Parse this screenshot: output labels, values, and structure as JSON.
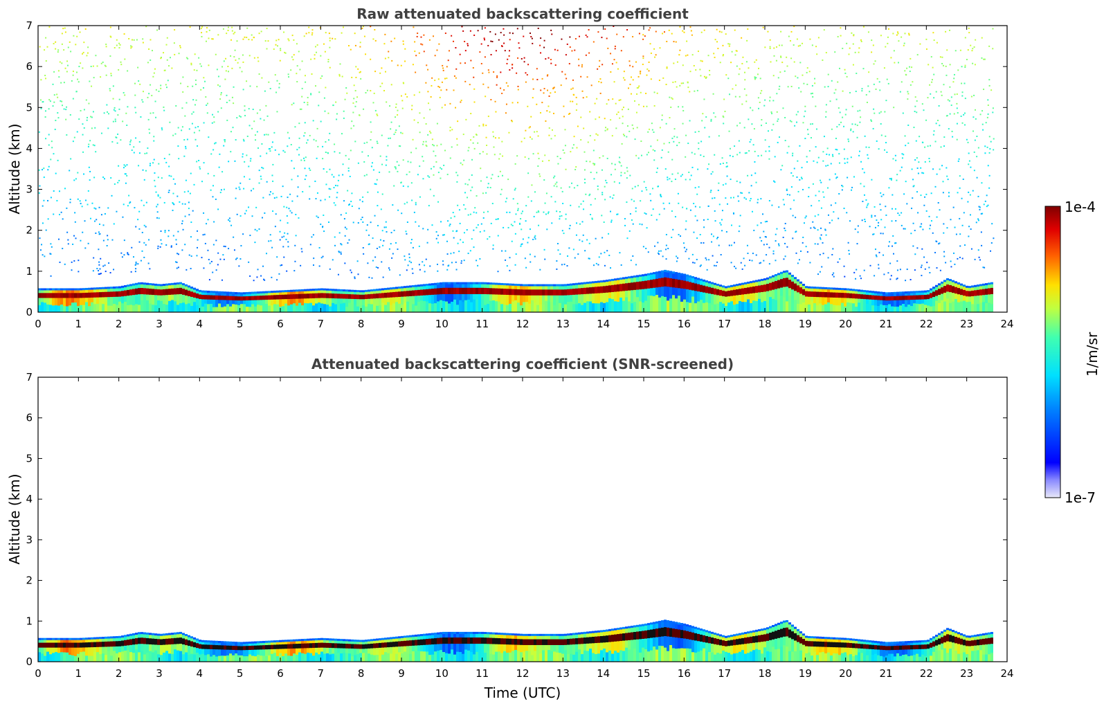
{
  "figure": {
    "colorbar": {
      "label": "1/m/sr",
      "min_label": "1e-7",
      "max_label": "1e-4"
    }
  },
  "chart_data": [
    {
      "type": "heatmap",
      "title": "Raw attenuated backscattering coefficient",
      "xlabel": "",
      "ylabel": "Altitude (km)",
      "xlim": [
        0,
        24
      ],
      "ylim": [
        0,
        7
      ],
      "xticks": [
        "0",
        "1",
        "2",
        "3",
        "4",
        "5",
        "6",
        "7",
        "8",
        "9",
        "10",
        "11",
        "12",
        "13",
        "14",
        "15",
        "16",
        "17",
        "18",
        "19",
        "20",
        "21",
        "22",
        "23",
        "24"
      ],
      "yticks": [
        "0",
        "1",
        "2",
        "3",
        "4",
        "5",
        "6",
        "7"
      ],
      "data_end_hour": 23.65,
      "boundary_layer_top_km": {
        "hours": [
          0,
          1,
          2,
          2.5,
          3,
          3.5,
          4,
          5,
          6,
          7,
          8,
          9,
          10,
          11,
          12,
          13,
          14,
          15,
          15.5,
          16,
          17,
          18,
          18.5,
          19,
          20,
          21,
          22,
          22.5,
          23,
          23.6
        ],
        "values": [
          0.55,
          0.55,
          0.6,
          0.7,
          0.65,
          0.7,
          0.5,
          0.45,
          0.5,
          0.55,
          0.5,
          0.6,
          0.7,
          0.7,
          0.65,
          0.65,
          0.75,
          0.9,
          1.0,
          0.9,
          0.6,
          0.8,
          1.0,
          0.6,
          0.55,
          0.45,
          0.5,
          0.8,
          0.6,
          0.7
        ]
      },
      "noise_level": "high"
    },
    {
      "type": "heatmap",
      "title": "Attenuated backscattering coefficient (SNR-screened)",
      "xlabel": "Time (UTC)",
      "ylabel": "Altitude (km)",
      "xlim": [
        0,
        24
      ],
      "ylim": [
        0,
        7
      ],
      "xticks": [
        "0",
        "1",
        "2",
        "3",
        "4",
        "5",
        "6",
        "7",
        "8",
        "9",
        "10",
        "11",
        "12",
        "13",
        "14",
        "15",
        "16",
        "17",
        "18",
        "19",
        "20",
        "21",
        "22",
        "23",
        "24"
      ],
      "yticks": [
        "0",
        "1",
        "2",
        "3",
        "4",
        "5",
        "6",
        "7"
      ],
      "data_end_hour": 23.65,
      "boundary_layer_top_km": {
        "hours": [
          0,
          1,
          2,
          2.5,
          3,
          3.5,
          4,
          5,
          6,
          7,
          8,
          9,
          10,
          11,
          12,
          13,
          14,
          15,
          15.5,
          16,
          17,
          18,
          18.5,
          19,
          20,
          21,
          22,
          22.5,
          23,
          23.6
        ],
        "values": [
          0.55,
          0.55,
          0.6,
          0.7,
          0.65,
          0.7,
          0.5,
          0.45,
          0.5,
          0.55,
          0.5,
          0.6,
          0.7,
          0.7,
          0.65,
          0.65,
          0.75,
          0.9,
          1.0,
          0.9,
          0.6,
          0.8,
          1.0,
          0.6,
          0.55,
          0.45,
          0.5,
          0.8,
          0.6,
          0.7
        ]
      },
      "noise_level": "screened"
    }
  ]
}
